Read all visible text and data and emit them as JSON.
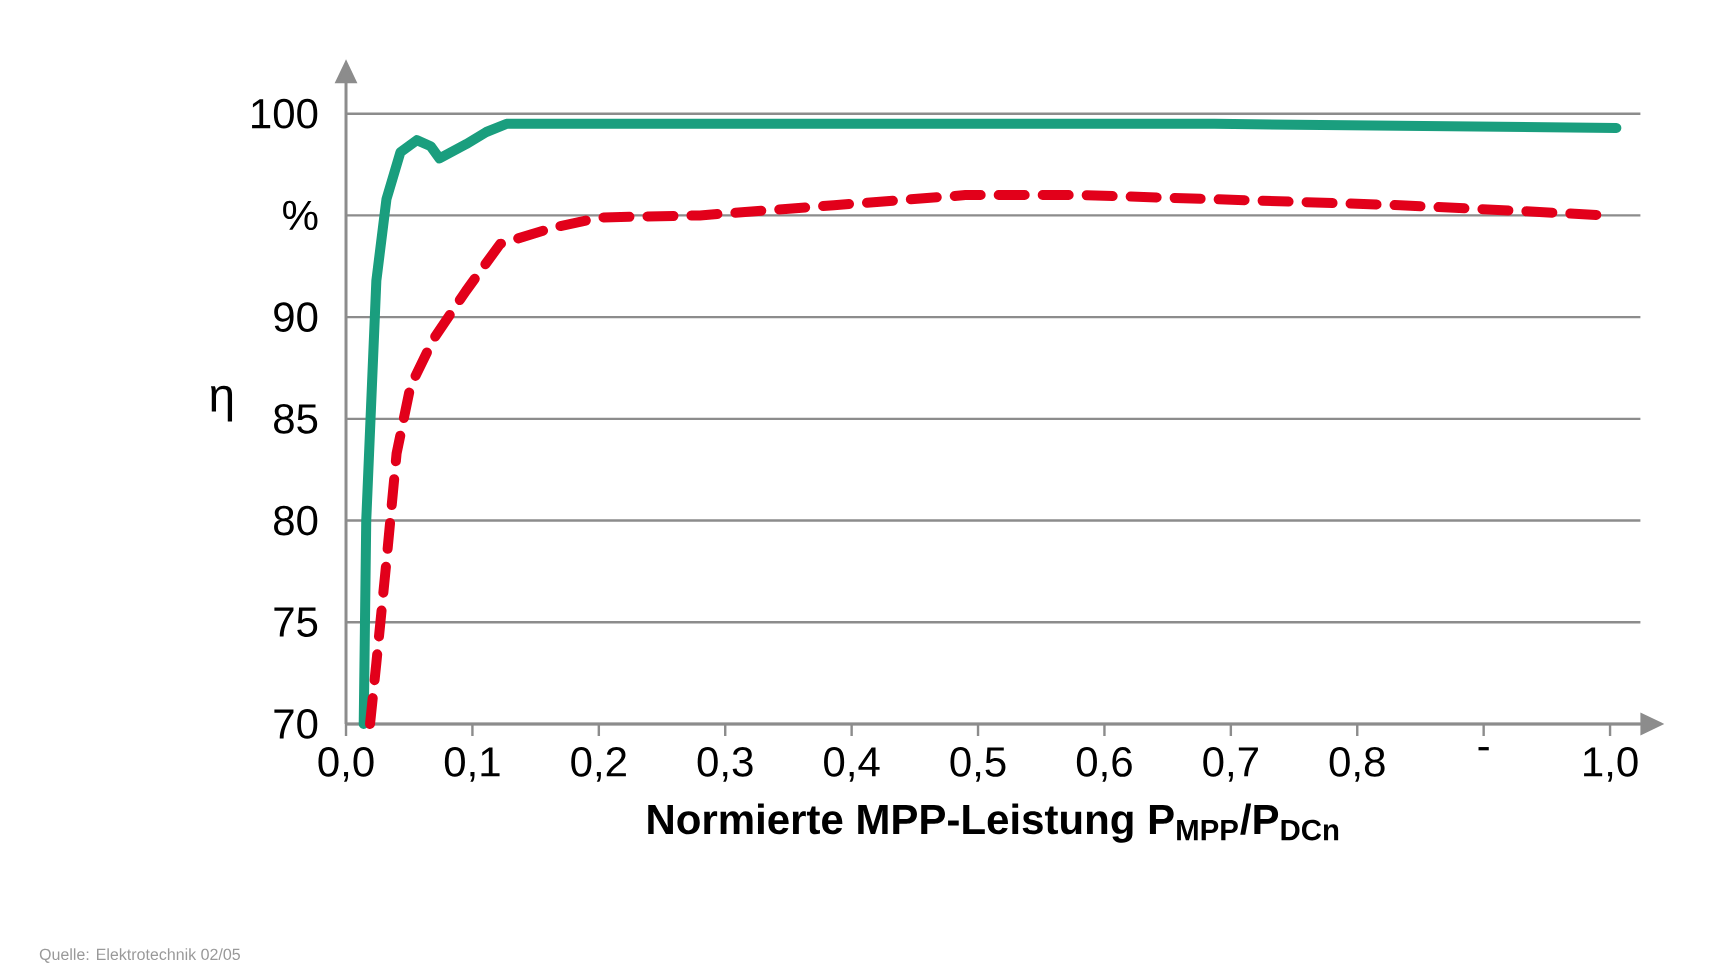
{
  "chart_data": {
    "type": "line",
    "xlabel": "Normierte MPP-Leistung P$_{MPP}$/P$_{DCn}$",
    "ylabel": "η",
    "xlim": [
      0,
      1.024
    ],
    "ylim": [
      70,
      101.5
    ],
    "xticks": [
      {
        "value": 0,
        "label": "0,0"
      },
      {
        "value": 0.1,
        "label": "0,1"
      },
      {
        "value": 0.2,
        "label": "0,2"
      },
      {
        "value": 0.3,
        "label": "0,3"
      },
      {
        "value": 0.4,
        "label": "0,4"
      },
      {
        "value": 0.5,
        "label": "0,5"
      },
      {
        "value": 0.6,
        "label": "0,6"
      },
      {
        "value": 0.7,
        "label": "0,7"
      },
      {
        "value": 0.8,
        "label": "0,8"
      },
      {
        "value": 0.9,
        "label": "-"
      },
      {
        "value": 1.0,
        "label": "1,0"
      }
    ],
    "yticks": [
      70,
      75,
      80,
      85,
      90,
      {
        "value": 95,
        "label": "%"
      },
      100
    ],
    "grid": "y",
    "marker": "none",
    "series": [
      {
        "color": "#1a9e7e",
        "line_style": "solid",
        "x": [
          0.014,
          0.016,
          0.024,
          0.032,
          0.043,
          0.056,
          0.067,
          0.074,
          0.095,
          0.111,
          0.127,
          0.687,
          1.005
        ],
        "values": [
          70,
          80,
          91.8,
          95.8,
          98.1,
          98.7,
          98.4,
          97.8,
          98.5,
          99.1,
          99.5,
          99.5,
          99.3
        ]
      },
      {
        "color": "#e2001a",
        "line_style": "dashed",
        "x": [
          0.019,
          0.024,
          0.032,
          0.04,
          0.051,
          0.069,
          0.095,
          0.122,
          0.164,
          0.201,
          0.28,
          0.386,
          0.49,
          0.581,
          0.686,
          0.834,
          0.934,
          0.997
        ],
        "values": [
          70,
          73,
          78,
          83.3,
          86.6,
          88.9,
          91.3,
          93.6,
          94.4,
          94.9,
          95.0,
          95.5,
          96.0,
          96.0,
          95.8,
          95.5,
          95.2,
          95.0
        ]
      }
    ],
    "annotations": [
      "Quelle: Elektrotechnik 02/05"
    ]
  }
}
